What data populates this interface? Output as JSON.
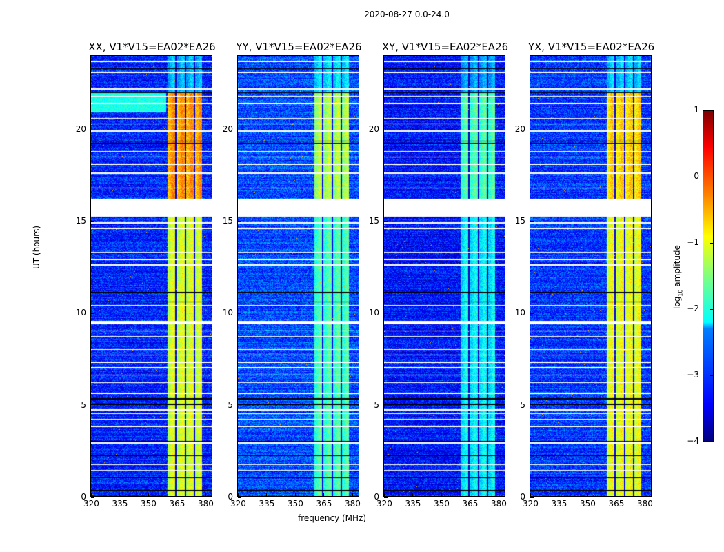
{
  "chart_data": {
    "type": "heatmap",
    "title": "2020-08-27 0.0-24.0",
    "xlabel": "frequency (MHz)",
    "ylabel": "UT (hours)",
    "xlim": [
      320,
      384
    ],
    "ylim": [
      0,
      24
    ],
    "xticks": [
      320,
      335,
      350,
      365,
      380
    ],
    "yticks": [
      0,
      5,
      10,
      15,
      20
    ],
    "colorbar": {
      "label_prefix": "log",
      "label_sub": "10",
      "label_suffix": " amplitude",
      "range": [
        -4,
        1
      ],
      "ticks": [
        1,
        0,
        -1,
        -2,
        -3,
        -4
      ],
      "colormap": "jet"
    },
    "rfi_band_mhz": [
      360.5,
      379
    ],
    "band_dividers_mhz": [
      365,
      370,
      375
    ],
    "flagged_gaps_hours": [
      [
        15.25,
        16.2
      ],
      [
        9.35,
        9.55
      ]
    ],
    "white_lines_hours": [
      1.4,
      1.7,
      2.9,
      3.8,
      4.2,
      4.5,
      4.7,
      5.6,
      6.2,
      6.6,
      7.0,
      7.3,
      7.7,
      8.0,
      8.7,
      9.0,
      10.4,
      12.6,
      12.9,
      13.3,
      14.6,
      14.9,
      16.8,
      17.6,
      18.1,
      18.5,
      18.8,
      19.9,
      20.3,
      20.6,
      21.4,
      21.8,
      22.2,
      23.1,
      23.7
    ],
    "black_lines_hours": [
      0.3,
      1.0,
      2.2,
      3.0,
      5.0,
      5.3,
      10.6,
      11.1,
      19.25,
      19.35,
      22.0,
      23.3
    ],
    "panels": [
      {
        "title": "XX, V1*V15=EA02*EA26",
        "background": -3.2,
        "band": -1.1,
        "band_16_22": -0.4,
        "top_row_cyan": true
      },
      {
        "title": "YY, V1*V15=EA02*EA26",
        "background": -3.0,
        "band": -1.8,
        "band_16_22": -1.3,
        "top_row_cyan": false
      },
      {
        "title": "XY, V1*V15=EA02*EA26",
        "background": -3.3,
        "band": -2.2,
        "band_16_22": -1.8,
        "top_row_cyan": false
      },
      {
        "title": "YX, V1*V15=EA02*EA26",
        "background": -3.1,
        "band": -1.0,
        "band_16_22": -0.7,
        "top_row_cyan": false
      }
    ]
  }
}
